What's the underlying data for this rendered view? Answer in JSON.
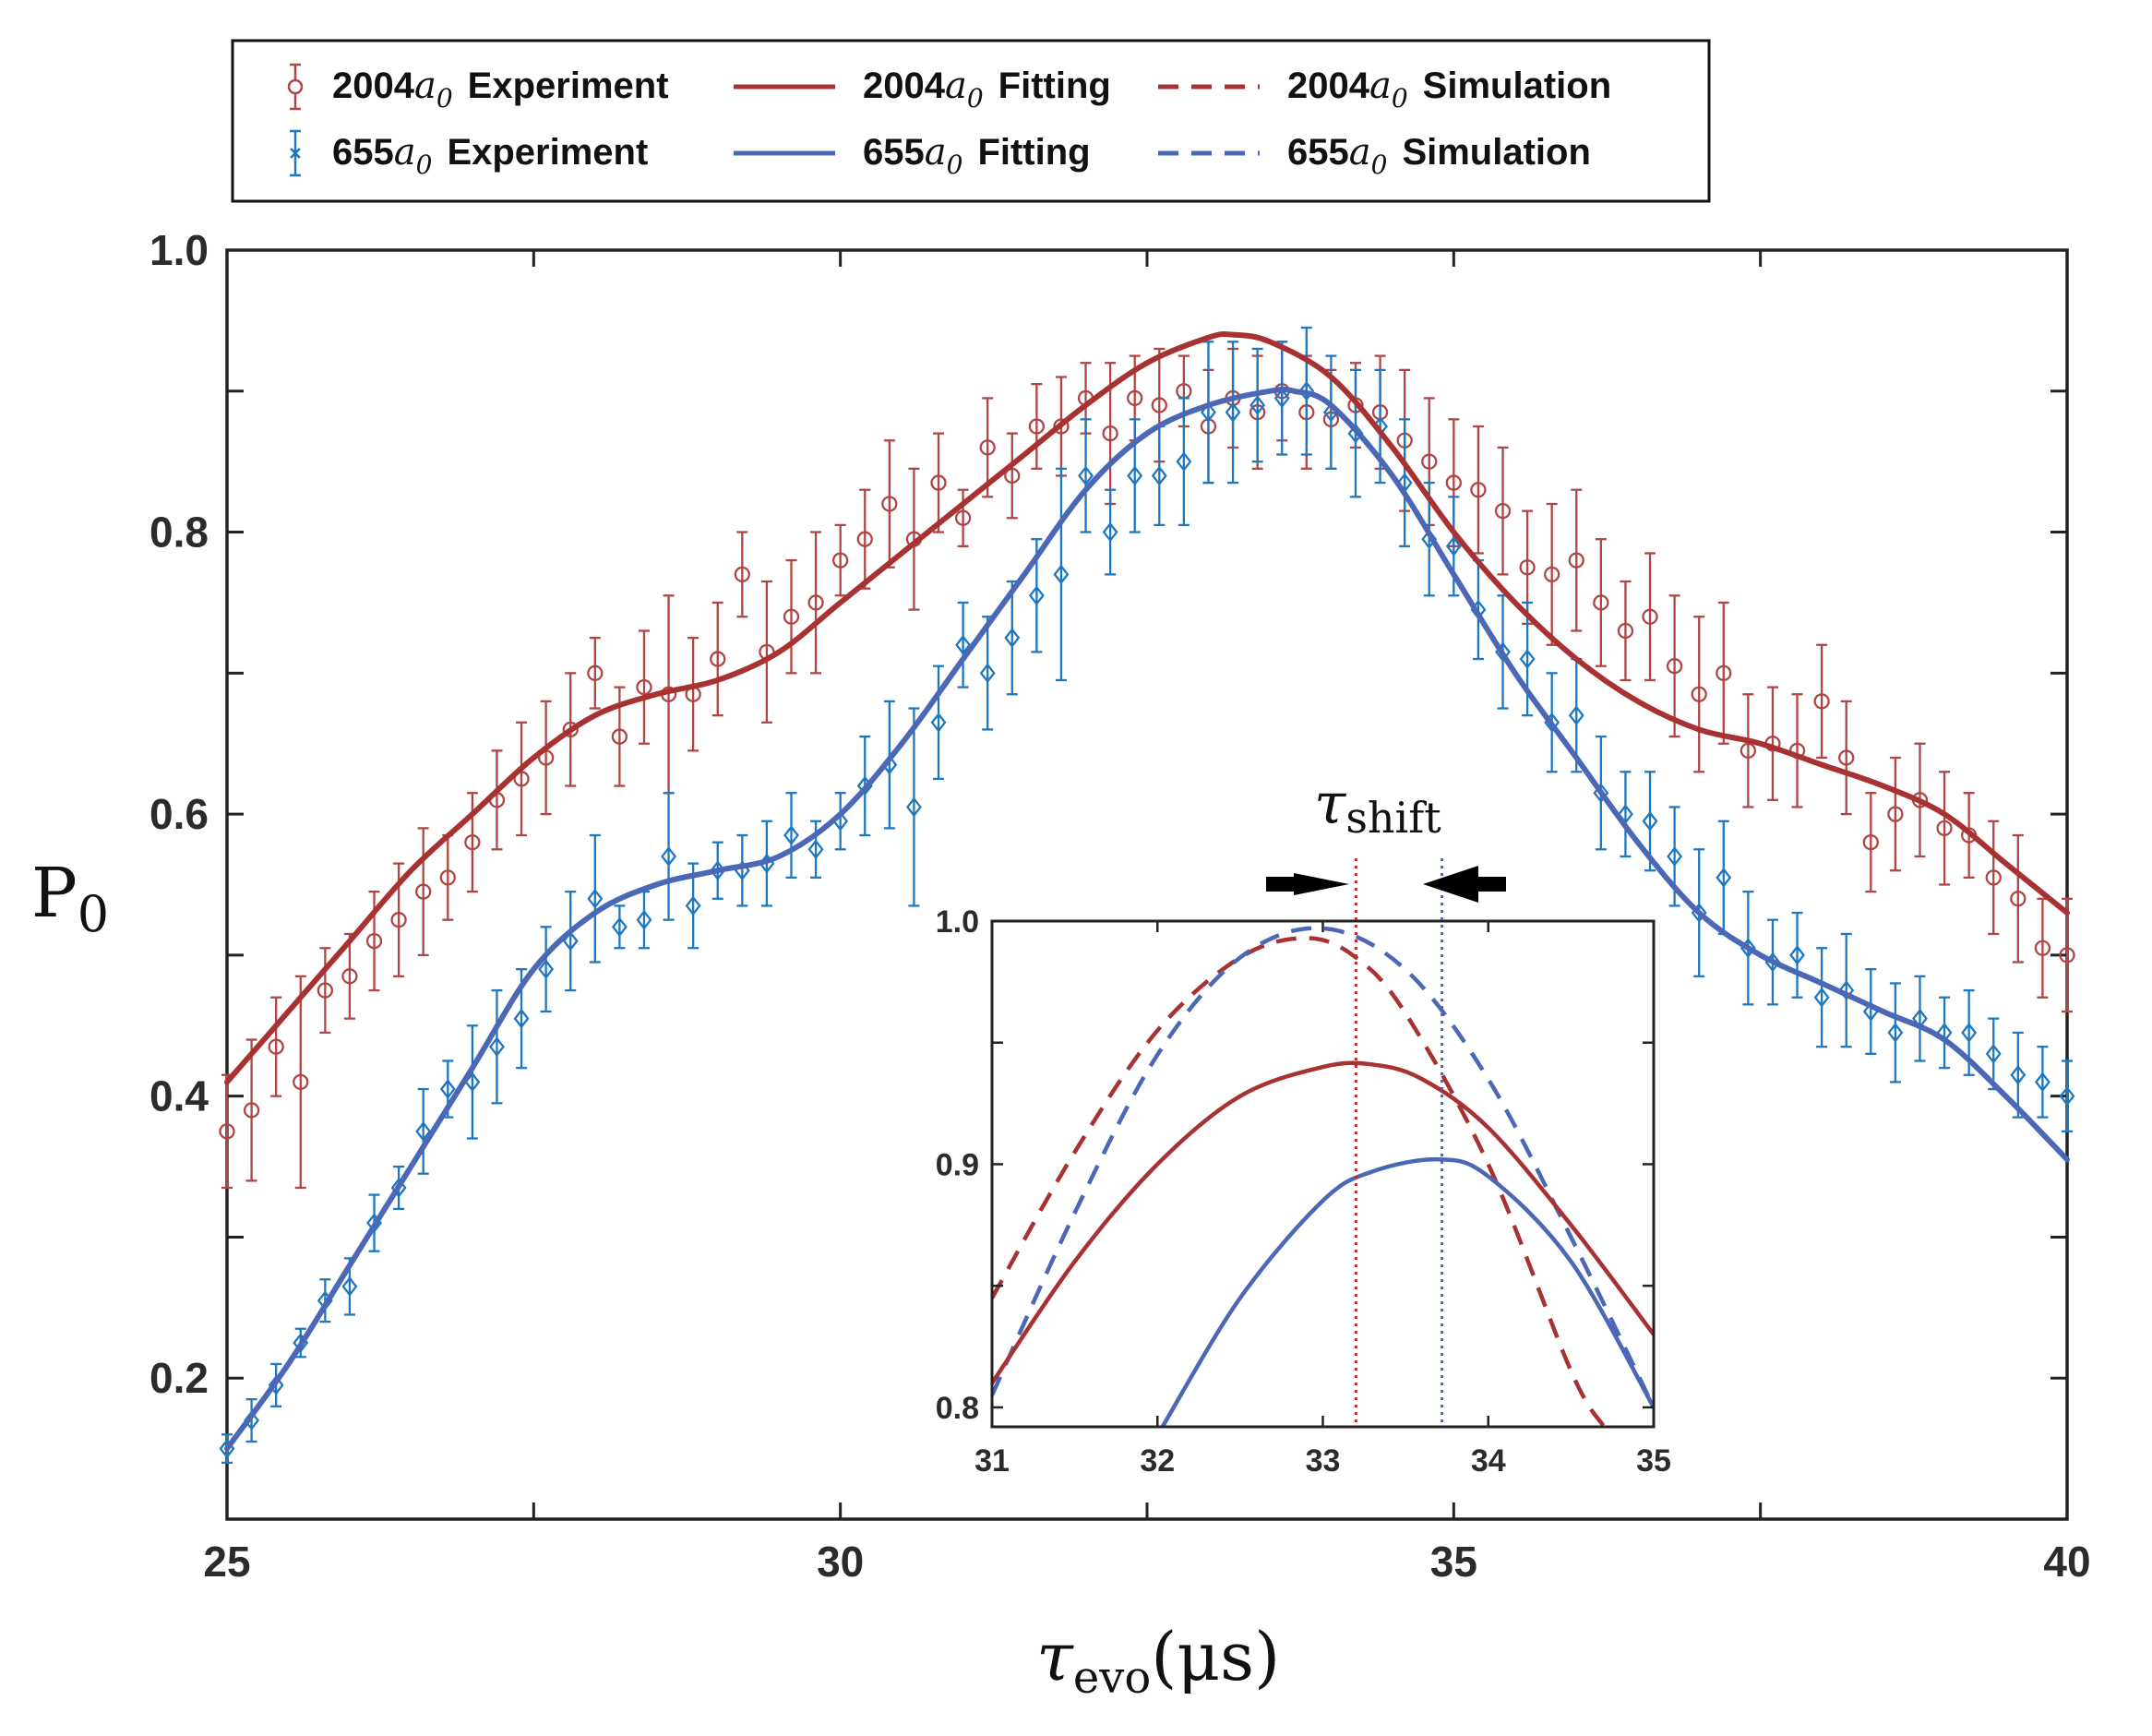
{
  "colors": {
    "red": "#a83232",
    "blue": "#4a68b5",
    "red_marker": "#b04545",
    "blue_marker": "#1e78c0",
    "axis": "#222222"
  },
  "legend": {
    "entries": [
      {
        "id": "red-exp",
        "prefix": "2004",
        "var": "a",
        "sub": "0",
        "label": "Experiment",
        "style": "errorbar-circle",
        "color_key": "red_marker"
      },
      {
        "id": "red-fit",
        "prefix": "2004",
        "var": "a",
        "sub": "0",
        "label": "Fitting",
        "style": "solid",
        "color_key": "red"
      },
      {
        "id": "red-sim",
        "prefix": "2004",
        "var": "a",
        "sub": "0",
        "label": "Simulation",
        "style": "dashed",
        "color_key": "red"
      },
      {
        "id": "blue-exp",
        "prefix": "655",
        "var": "a",
        "sub": "0",
        "label": "Experiment",
        "style": "errorbar-x",
        "color_key": "blue_marker"
      },
      {
        "id": "blue-fit",
        "prefix": "655",
        "var": "a",
        "sub": "0",
        "label": "Fitting",
        "style": "solid",
        "color_key": "blue"
      },
      {
        "id": "blue-sim",
        "prefix": "655",
        "var": "a",
        "sub": "0",
        "label": "Simulation",
        "style": "dashed",
        "color_key": "blue"
      }
    ]
  },
  "chart_data": [
    {
      "id": "main",
      "type": "line",
      "title": "",
      "xlabel": {
        "var": "τ",
        "sub": "evo",
        "unit": "(μs)"
      },
      "ylabel": {
        "var": "P",
        "sub": "0"
      },
      "xlim": [
        25,
        40
      ],
      "ylim": [
        0.1,
        1.0
      ],
      "xticks": [
        25,
        30,
        35,
        40
      ],
      "xtick_labels": [
        "25",
        "30",
        "35",
        "40"
      ],
      "xminor_ticks": [
        27.5,
        32.5,
        37.5
      ],
      "yticks": [
        0.2,
        0.4,
        0.6,
        0.8,
        1.0
      ],
      "ytick_labels": [
        "0.2",
        "0.4",
        "0.6",
        "0.8",
        "1.0"
      ],
      "yminor_ticks": [
        0.3,
        0.5,
        0.7,
        0.9
      ],
      "series": [
        {
          "name": "2004a0 Fitting",
          "kind": "line",
          "color_key": "red",
          "x": [
            25,
            25.5,
            26,
            26.5,
            27,
            27.5,
            28,
            28.5,
            29,
            29.5,
            30,
            30.5,
            31,
            31.5,
            32,
            32.5,
            33,
            33.2,
            33.5,
            34,
            34.5,
            35,
            35.5,
            36,
            36.5,
            37,
            37.5,
            38,
            38.5,
            39,
            39.5,
            40
          ],
          "y": [
            0.41,
            0.46,
            0.51,
            0.56,
            0.6,
            0.64,
            0.67,
            0.685,
            0.695,
            0.715,
            0.75,
            0.785,
            0.82,
            0.855,
            0.89,
            0.92,
            0.938,
            0.94,
            0.935,
            0.91,
            0.86,
            0.8,
            0.75,
            0.71,
            0.68,
            0.66,
            0.65,
            0.635,
            0.62,
            0.6,
            0.565,
            0.53
          ]
        },
        {
          "name": "655a0 Fitting",
          "kind": "line",
          "color_key": "blue",
          "x": [
            25,
            25.5,
            26,
            26.5,
            27,
            27.5,
            28,
            28.5,
            29,
            29.5,
            30,
            30.5,
            31,
            31.5,
            32,
            32.5,
            33,
            33.5,
            33.7,
            34,
            34.5,
            35,
            35.5,
            36,
            36.5,
            37,
            37.5,
            38,
            38.5,
            39,
            39.5,
            40
          ],
          "y": [
            0.15,
            0.21,
            0.28,
            0.35,
            0.42,
            0.49,
            0.53,
            0.55,
            0.56,
            0.57,
            0.6,
            0.65,
            0.71,
            0.77,
            0.83,
            0.87,
            0.89,
            0.9,
            0.9,
            0.89,
            0.84,
            0.77,
            0.7,
            0.64,
            0.58,
            0.53,
            0.5,
            0.48,
            0.46,
            0.44,
            0.4,
            0.355
          ]
        },
        {
          "name": "2004a0 Experiment",
          "kind": "errorbar",
          "marker": "circle",
          "color_key": "red_marker",
          "x": [
            25.0,
            25.2,
            25.4,
            25.6,
            25.8,
            26.0,
            26.2,
            26.4,
            26.6,
            26.8,
            27.0,
            27.2,
            27.4,
            27.6,
            27.8,
            28.0,
            28.2,
            28.4,
            28.6,
            28.8,
            29.0,
            29.2,
            29.4,
            29.6,
            29.8,
            30.0,
            30.2,
            30.4,
            30.6,
            30.8,
            31.0,
            31.2,
            31.4,
            31.6,
            31.8,
            32.0,
            32.2,
            32.4,
            32.6,
            32.8,
            33.0,
            33.2,
            33.4,
            33.6,
            33.8,
            34.0,
            34.2,
            34.4,
            34.6,
            34.8,
            35.0,
            35.2,
            35.4,
            35.6,
            35.8,
            36.0,
            36.2,
            36.4,
            36.6,
            36.8,
            37.0,
            37.2,
            37.4,
            37.6,
            37.8,
            38.0,
            38.2,
            38.4,
            38.6,
            38.8,
            39.0,
            39.2,
            39.4,
            39.6,
            39.8,
            40.0
          ],
          "y": [
            0.375,
            0.39,
            0.435,
            0.41,
            0.475,
            0.485,
            0.51,
            0.525,
            0.545,
            0.555,
            0.58,
            0.61,
            0.625,
            0.64,
            0.66,
            0.7,
            0.655,
            0.69,
            0.685,
            0.685,
            0.71,
            0.77,
            0.715,
            0.74,
            0.75,
            0.78,
            0.795,
            0.82,
            0.795,
            0.835,
            0.81,
            0.86,
            0.84,
            0.875,
            0.875,
            0.895,
            0.87,
            0.895,
            0.89,
            0.9,
            0.875,
            0.895,
            0.885,
            0.9,
            0.885,
            0.88,
            0.89,
            0.885,
            0.865,
            0.85,
            0.835,
            0.83,
            0.815,
            0.775,
            0.77,
            0.78,
            0.75,
            0.73,
            0.74,
            0.705,
            0.685,
            0.7,
            0.645,
            0.65,
            0.645,
            0.68,
            0.64,
            0.58,
            0.6,
            0.61,
            0.59,
            0.585,
            0.555,
            0.54,
            0.505,
            0.5
          ],
          "err": [
            0.04,
            0.05,
            0.035,
            0.075,
            0.03,
            0.03,
            0.035,
            0.04,
            0.045,
            0.03,
            0.035,
            0.035,
            0.04,
            0.04,
            0.04,
            0.025,
            0.035,
            0.04,
            0.07,
            0.04,
            0.04,
            0.03,
            0.05,
            0.04,
            0.05,
            0.025,
            0.035,
            0.045,
            0.05,
            0.035,
            0.02,
            0.035,
            0.03,
            0.03,
            0.035,
            0.025,
            0.05,
            0.03,
            0.04,
            0.025,
            0.04,
            0.035,
            0.04,
            0.035,
            0.04,
            0.035,
            0.03,
            0.04,
            0.05,
            0.045,
            0.045,
            0.045,
            0.045,
            0.04,
            0.05,
            0.05,
            0.045,
            0.035,
            0.045,
            0.05,
            0.055,
            0.05,
            0.04,
            0.04,
            0.04,
            0.04,
            0.04,
            0.035,
            0.04,
            0.04,
            0.04,
            0.03,
            0.04,
            0.045,
            0.035,
            0.04
          ]
        },
        {
          "name": "655a0 Experiment",
          "kind": "errorbar",
          "marker": "diamond",
          "color_key": "blue_marker",
          "x": [
            25.0,
            25.2,
            25.4,
            25.6,
            25.8,
            26.0,
            26.2,
            26.4,
            26.6,
            26.8,
            27.0,
            27.2,
            27.4,
            27.6,
            27.8,
            28.0,
            28.2,
            28.4,
            28.6,
            28.8,
            29.0,
            29.2,
            29.4,
            29.6,
            29.8,
            30.0,
            30.2,
            30.4,
            30.6,
            30.8,
            31.0,
            31.2,
            31.4,
            31.6,
            31.8,
            32.0,
            32.2,
            32.4,
            32.6,
            32.8,
            33.0,
            33.2,
            33.4,
            33.6,
            33.8,
            34.0,
            34.2,
            34.4,
            34.6,
            34.8,
            35.0,
            35.2,
            35.4,
            35.6,
            35.8,
            36.0,
            36.2,
            36.4,
            36.6,
            36.8,
            37.0,
            37.2,
            37.4,
            37.6,
            37.8,
            38.0,
            38.2,
            38.4,
            38.6,
            38.8,
            39.0,
            39.2,
            39.4,
            39.6,
            39.8,
            40.0
          ],
          "y": [
            0.15,
            0.17,
            0.195,
            0.225,
            0.255,
            0.265,
            0.31,
            0.335,
            0.375,
            0.405,
            0.41,
            0.435,
            0.455,
            0.49,
            0.51,
            0.54,
            0.52,
            0.525,
            0.57,
            0.535,
            0.56,
            0.56,
            0.565,
            0.585,
            0.575,
            0.595,
            0.62,
            0.635,
            0.605,
            0.665,
            0.72,
            0.7,
            0.725,
            0.755,
            0.77,
            0.84,
            0.8,
            0.84,
            0.84,
            0.85,
            0.885,
            0.885,
            0.89,
            0.895,
            0.9,
            0.885,
            0.87,
            0.875,
            0.835,
            0.795,
            0.79,
            0.745,
            0.715,
            0.71,
            0.665,
            0.67,
            0.615,
            0.6,
            0.595,
            0.57,
            0.53,
            0.555,
            0.505,
            0.495,
            0.5,
            0.47,
            0.475,
            0.46,
            0.445,
            0.455,
            0.445,
            0.445,
            0.43,
            0.415,
            0.41,
            0.4
          ],
          "err": [
            0.01,
            0.015,
            0.015,
            0.01,
            0.015,
            0.02,
            0.02,
            0.015,
            0.03,
            0.02,
            0.04,
            0.04,
            0.035,
            0.03,
            0.035,
            0.045,
            0.015,
            0.02,
            0.045,
            0.03,
            0.02,
            0.025,
            0.03,
            0.03,
            0.02,
            0.02,
            0.035,
            0.045,
            0.07,
            0.04,
            0.03,
            0.04,
            0.04,
            0.04,
            0.075,
            0.04,
            0.03,
            0.04,
            0.035,
            0.045,
            0.05,
            0.05,
            0.04,
            0.04,
            0.045,
            0.04,
            0.045,
            0.04,
            0.045,
            0.04,
            0.035,
            0.035,
            0.04,
            0.04,
            0.035,
            0.04,
            0.04,
            0.03,
            0.035,
            0.035,
            0.045,
            0.04,
            0.04,
            0.03,
            0.03,
            0.035,
            0.04,
            0.03,
            0.035,
            0.03,
            0.025,
            0.03,
            0.025,
            0.03,
            0.025,
            0.025
          ]
        }
      ]
    },
    {
      "id": "inset",
      "type": "line",
      "xlim": [
        31,
        35
      ],
      "ylim": [
        0.792,
        1.0
      ],
      "xticks": [
        31,
        32,
        33,
        34,
        35
      ],
      "xtick_labels": [
        "31",
        "32",
        "33",
        "34",
        "35"
      ],
      "yticks": [
        0.8,
        0.9,
        1.0
      ],
      "ytick_labels": [
        "0.8",
        "0.9",
        "1.0"
      ],
      "yminor_ticks": [
        0.85,
        0.95
      ],
      "series": [
        {
          "name": "2004a0 Simulation",
          "kind": "dashed",
          "color_key": "red",
          "x": [
            31,
            31.5,
            32,
            32.5,
            32.9,
            33.2,
            33.5,
            34,
            34.5,
            34.7
          ],
          "y": [
            0.845,
            0.905,
            0.955,
            0.985,
            0.993,
            0.985,
            0.962,
            0.9,
            0.815,
            0.792
          ]
        },
        {
          "name": "655a0 Simulation",
          "kind": "dashed",
          "color_key": "blue",
          "x": [
            31,
            31.5,
            32,
            32.5,
            33,
            33.5,
            34,
            34.5,
            35
          ],
          "y": [
            0.805,
            0.88,
            0.945,
            0.985,
            0.997,
            0.98,
            0.935,
            0.87,
            0.8
          ]
        },
        {
          "name": "2004a0 Fitting",
          "kind": "line",
          "color_key": "red",
          "x": [
            31,
            31.5,
            32,
            32.5,
            33,
            33.3,
            33.6,
            34,
            34.5,
            35
          ],
          "y": [
            0.81,
            0.86,
            0.9,
            0.928,
            0.94,
            0.941,
            0.935,
            0.915,
            0.875,
            0.83
          ]
        },
        {
          "name": "655a0 Fitting",
          "kind": "line",
          "color_key": "blue",
          "x": [
            32.03,
            32.5,
            33,
            33.3,
            33.7,
            34,
            34.5,
            35
          ],
          "y": [
            0.792,
            0.845,
            0.885,
            0.897,
            0.902,
            0.895,
            0.86,
            0.8
          ]
        }
      ],
      "vlines": [
        {
          "x": 33.2,
          "color_key": "red",
          "style": "dotted"
        },
        {
          "x": 33.72,
          "color_key": "blue",
          "style": "dotted"
        }
      ],
      "annotation": {
        "var": "τ",
        "sub": "shift"
      }
    }
  ]
}
